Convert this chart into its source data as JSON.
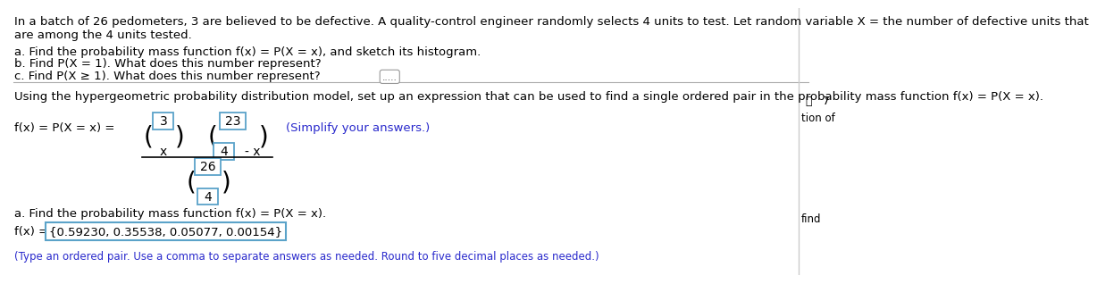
{
  "title_text": "In a batch of 26 pedometers, 3 are believed to be defective. A quality-control engineer randomly selects 4 units to test. Let random variable X = the number of defective units that",
  "title_text2": "are among the 4 units tested.",
  "question_a": "a. Find the probability mass function f(x) = P(X = x), and sketch its histogram.",
  "question_b": "b. Find P(X = 1). What does this number represent?",
  "question_c": "c. Find P(X ≥ 1). What does this number represent?",
  "separator_dots": ".....",
  "using_text": "Using the hypergeometric probability distribution model, set up an expression that can be used to find a single ordered pair in the probability mass function f(x) = P(X = x).",
  "formula_label": "f(x) = P(X = x) =",
  "simplify_text": "(Simplify your answers.)",
  "find_pmf_text": "a. Find the probability mass function f(x) = P(X = x).",
  "fx_label": "f(x) = ",
  "fx_values": "{0.59230, 0.35538, 0.05077, 0.00154}",
  "type_instruction": "(Type an ordered pair. Use a comma to separate answers as needed. Round to five decimal places as needed.)",
  "box_color": "#5ba3c9",
  "blue_text_color": "#2929cc",
  "black_text_color": "#000000",
  "background_color": "#ffffff",
  "side_label_right1": "7",
  "side_label_right2": "tion of",
  "side_label_right3": "find",
  "num_3": "3",
  "num_23": "23",
  "num_x": "x",
  "num_4": "4",
  "minus_x": "- x",
  "num_26": "26",
  "num_4b": "4"
}
